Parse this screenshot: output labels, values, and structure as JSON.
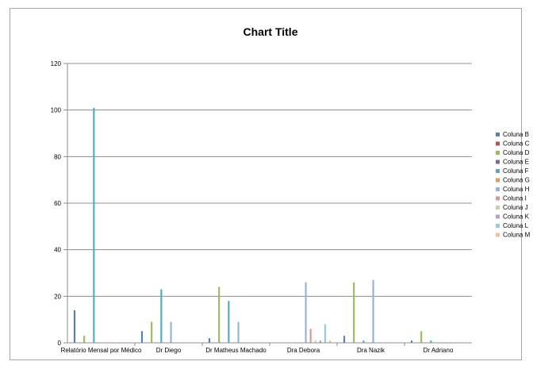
{
  "chart_data": {
    "type": "bar",
    "title": "Chart Title",
    "xlabel": "",
    "ylabel": "",
    "ylim": [
      0,
      120
    ],
    "yticks": [
      0,
      20,
      40,
      60,
      80,
      100,
      120
    ],
    "grid": true,
    "legend_position": "right",
    "categories": [
      "Relatório Mensal por Médico",
      "Dr Diego",
      "Dr Matheus Machado",
      "Dra Debora",
      "Dra Nazik",
      "Dr Adriano"
    ],
    "series": [
      {
        "name": "Coluna B",
        "color": "#4f81bd",
        "values": [
          14,
          5,
          2,
          0,
          3,
          1
        ]
      },
      {
        "name": "Coluna C",
        "color": "#c0504d",
        "values": [
          0,
          0,
          0,
          0,
          0,
          0
        ]
      },
      {
        "name": "Coluna D",
        "color": "#9bbb59",
        "values": [
          3,
          9,
          24,
          0,
          26,
          5
        ]
      },
      {
        "name": "Coluna E",
        "color": "#8064a2",
        "values": [
          0,
          0,
          0,
          0,
          0,
          0
        ]
      },
      {
        "name": "Coluna F",
        "color": "#4bacc6",
        "values": [
          101,
          23,
          18,
          0,
          1,
          1
        ]
      },
      {
        "name": "Coluna G",
        "color": "#f79646",
        "values": [
          0,
          0,
          0,
          0,
          0,
          0
        ]
      },
      {
        "name": "Coluna H",
        "color": "#95b3d7",
        "values": [
          0,
          9,
          9,
          26,
          27,
          0
        ]
      },
      {
        "name": "Coluna I",
        "color": "#da9694",
        "values": [
          0,
          0,
          0,
          6,
          0,
          0
        ]
      },
      {
        "name": "Coluna J",
        "color": "#c4d79b",
        "values": [
          0,
          0,
          0,
          1,
          0,
          0
        ]
      },
      {
        "name": "Coluna K",
        "color": "#b1a0c7",
        "values": [
          0,
          0,
          0,
          1,
          0,
          0
        ]
      },
      {
        "name": "Coluna L",
        "color": "#92cddc",
        "values": [
          0,
          0,
          0,
          8,
          0,
          0
        ]
      },
      {
        "name": "Coluna M",
        "color": "#fabf8f",
        "values": [
          0,
          0,
          0,
          1,
          0,
          0
        ]
      }
    ]
  }
}
